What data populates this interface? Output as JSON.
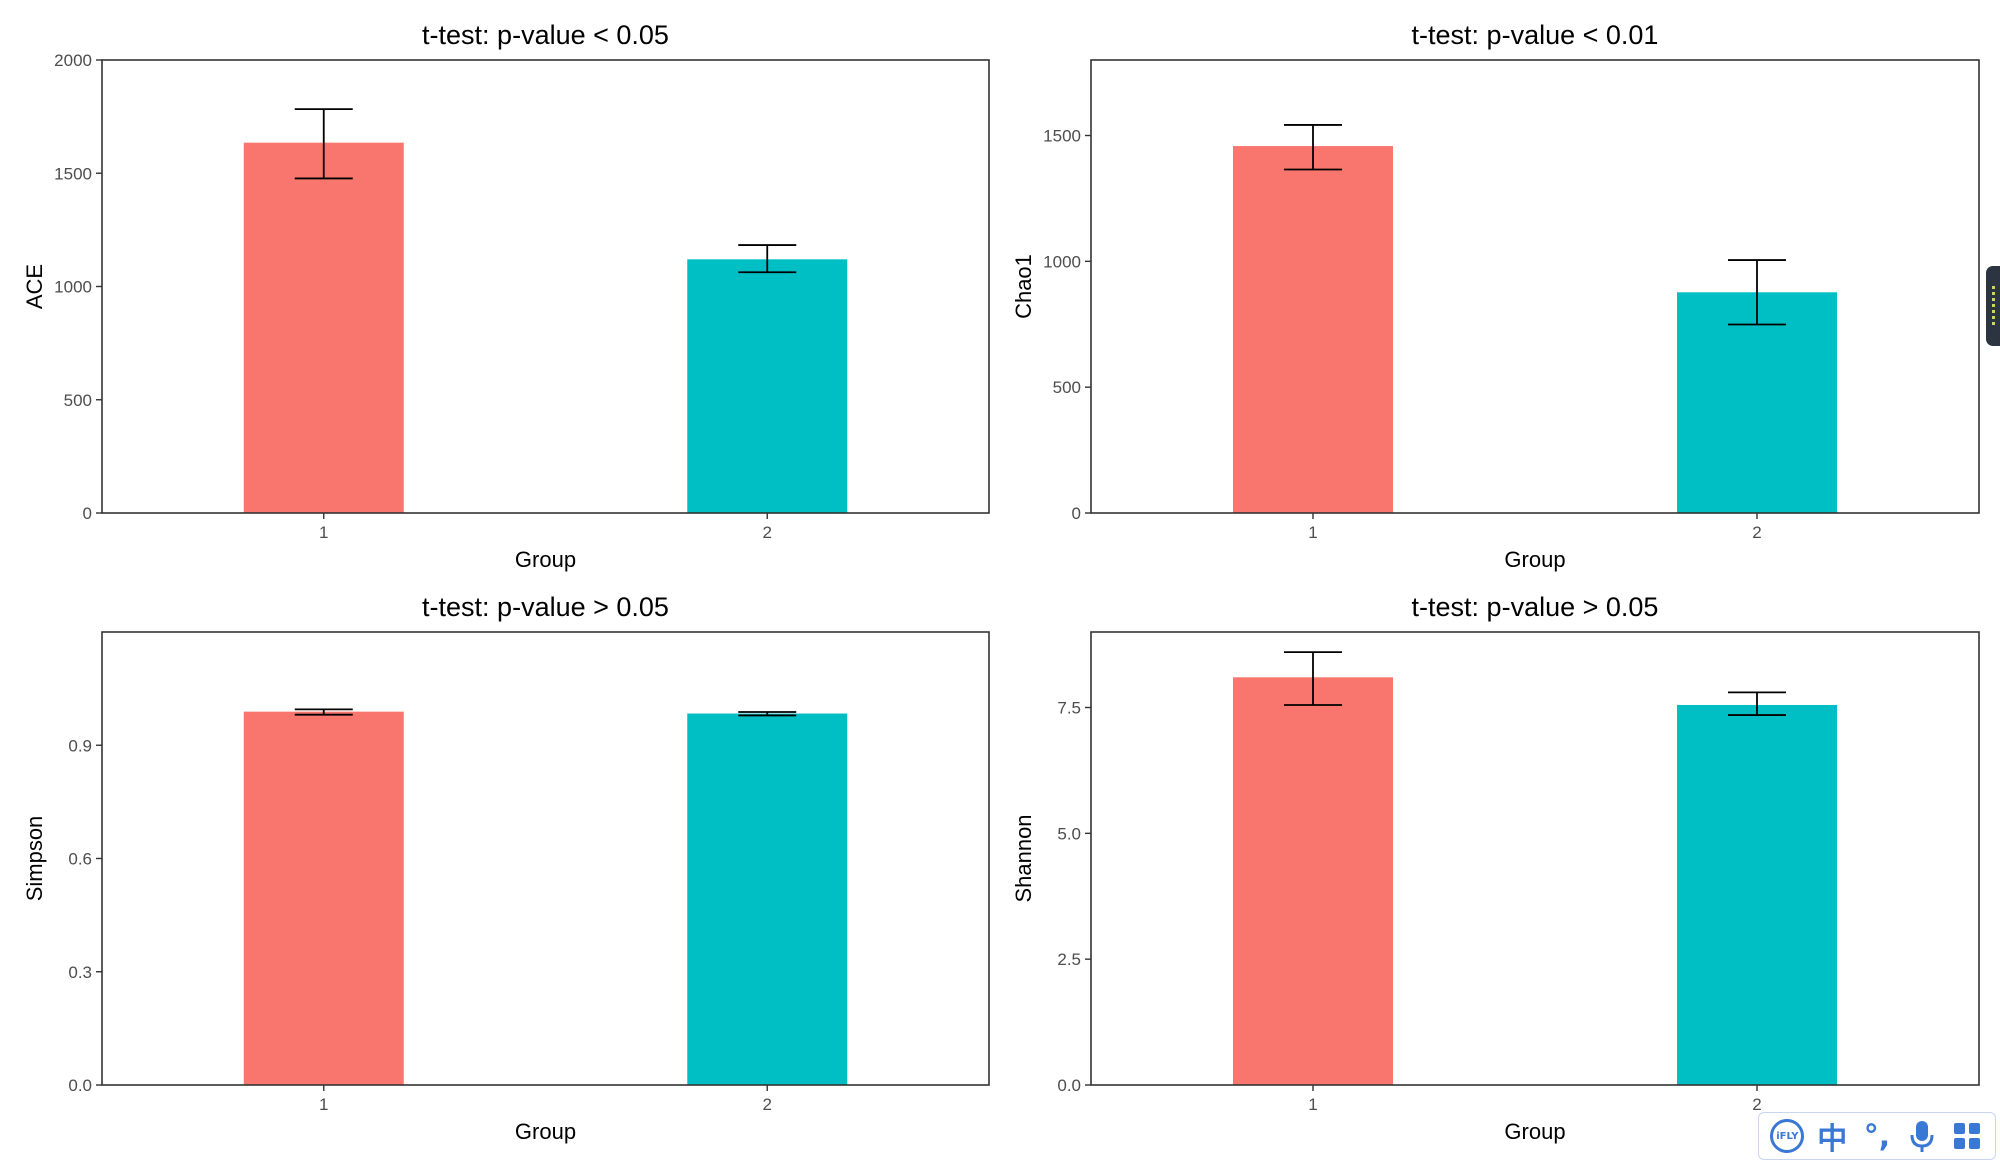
{
  "chart_data": [
    {
      "type": "bar",
      "title": "t-test: p-value < 0.05",
      "xlabel": "Group",
      "ylabel": "ACE",
      "categories": [
        "1",
        "2"
      ],
      "values": [
        1635,
        1120
      ],
      "error_low": [
        1477,
        1063
      ],
      "error_high": [
        1783,
        1183
      ],
      "ylim": [
        0,
        2000
      ],
      "yticks": [
        0,
        500,
        1000,
        1500,
        2000
      ],
      "ytick_labels": [
        "0",
        "500",
        "1000",
        "1500",
        "2000"
      ],
      "colors": [
        "#F8766D",
        "#00BFC4"
      ],
      "grid": false
    },
    {
      "type": "bar",
      "title": "t-test: p-value < 0.01",
      "xlabel": "Group",
      "ylabel": "Chao1",
      "categories": [
        "1",
        "2"
      ],
      "values": [
        1458,
        877
      ],
      "error_low": [
        1365,
        749
      ],
      "error_high": [
        1542,
        1005
      ],
      "ylim": [
        0,
        1800
      ],
      "yticks": [
        0,
        500,
        1000,
        1500
      ],
      "ytick_labels": [
        "0",
        "500",
        "1000",
        "1500"
      ],
      "colors": [
        "#F8766D",
        "#00BFC4"
      ],
      "grid": false
    },
    {
      "type": "bar",
      "title": "t-test: p-value > 0.05",
      "xlabel": "Group",
      "ylabel": "Simpson",
      "categories": [
        "1",
        "2"
      ],
      "values": [
        0.989,
        0.984
      ],
      "error_low": [
        0.981,
        0.979
      ],
      "error_high": [
        0.995,
        0.988
      ],
      "ylim": [
        0,
        1.2
      ],
      "yticks": [
        0,
        0.3,
        0.6,
        0.9
      ],
      "ytick_labels": [
        "0.0",
        "0.3",
        "0.6",
        "0.9"
      ],
      "colors": [
        "#F8766D",
        "#00BFC4"
      ],
      "grid": false
    },
    {
      "type": "bar",
      "title": "t-test: p-value > 0.05",
      "xlabel": "Group",
      "ylabel": "Shannon",
      "categories": [
        "1",
        "2"
      ],
      "values": [
        8.1,
        7.55
      ],
      "error_low": [
        7.55,
        7.35
      ],
      "error_high": [
        8.6,
        7.8
      ],
      "ylim": [
        0,
        9
      ],
      "yticks": [
        0,
        2.5,
        5.0,
        7.5
      ],
      "ytick_labels": [
        "0.0",
        "2.5",
        "5.0",
        "7.5"
      ],
      "colors": [
        "#F8766D",
        "#00BFC4"
      ],
      "grid": false
    }
  ],
  "ime_toolbar": {
    "logo_text": "iFLY",
    "lang_label": "中",
    "punct_label": "°,",
    "icons": [
      "ifly-logo-icon",
      "punctuation-icon",
      "microphone-icon",
      "apps-grid-icon"
    ]
  }
}
